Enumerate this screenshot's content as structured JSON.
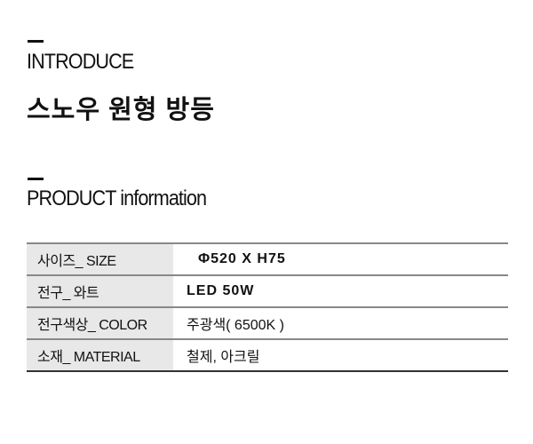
{
  "intro": {
    "label": "INTRODUCE",
    "title": "스노우 원형 방등"
  },
  "product": {
    "label": "PRODUCT information",
    "rows": [
      {
        "key": "사이즈_ SIZE",
        "value": "Φ520 X H75"
      },
      {
        "key": "전구_ 와트",
        "value": "LED 50W"
      },
      {
        "key": "전구색상_ COLOR",
        "value": "주광색( 6500K )"
      },
      {
        "key": "소재_ MATERIAL",
        "value": "철제, 아크릴"
      }
    ]
  }
}
